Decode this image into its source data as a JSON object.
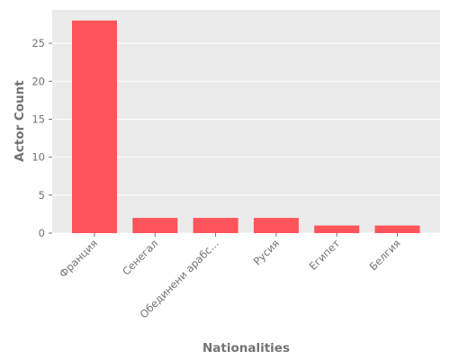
{
  "chart_data": {
    "type": "bar",
    "title": "",
    "xlabel": "Nationalities",
    "ylabel": "Actor Count",
    "categories": [
      "Франция",
      "Сенегал",
      "Обединени арабс...",
      "Русия",
      "Египет",
      "Белгия"
    ],
    "values": [
      28,
      2,
      2,
      2,
      1,
      1
    ],
    "ylim": [
      0,
      29.4
    ],
    "yticks": [
      0,
      5,
      10,
      15,
      20,
      25
    ],
    "grid": true,
    "legend": "none",
    "colors": {
      "bar": "#ff5459",
      "plot_background": "#ebebeb",
      "gridline": "#ffffff",
      "text": "#737373"
    }
  }
}
